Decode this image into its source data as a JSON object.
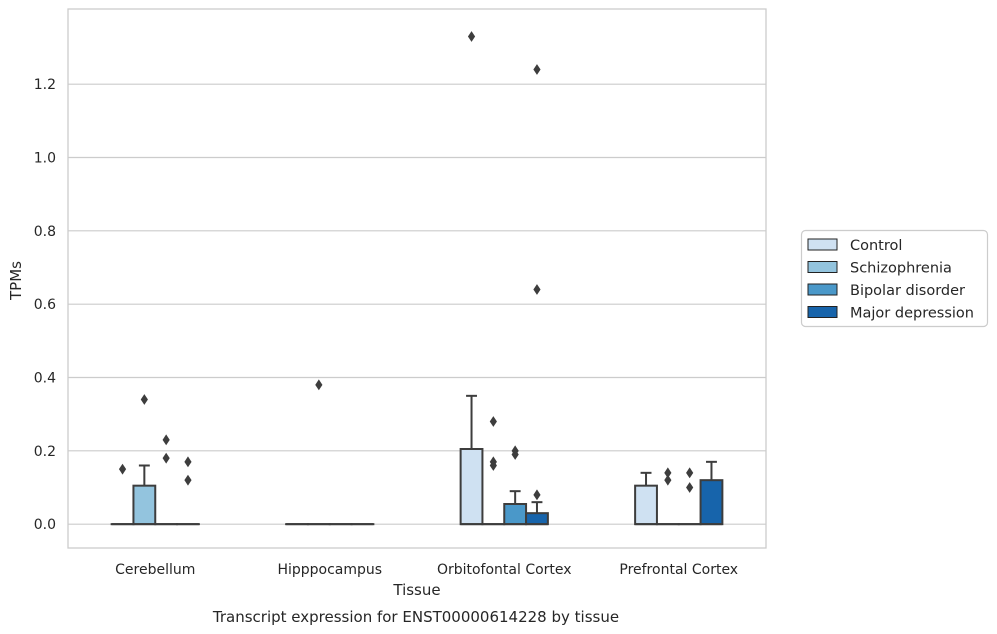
{
  "chart_data": {
    "type": "box",
    "caption": "Transcript expression for ENST00000614228 by tissue",
    "xlabel": "Tissue",
    "ylabel": "TPMs",
    "ylim": [
      -0.065,
      1.405
    ],
    "yticks": [
      0.0,
      0.2,
      0.4,
      0.6,
      0.8,
      1.0,
      1.2
    ],
    "ytick_labels": [
      "0.0",
      "0.2",
      "0.4",
      "0.6",
      "0.8",
      "1.0",
      "1.2"
    ],
    "grid": true,
    "legend_position": "right",
    "categories": [
      "Cerebellum",
      "Hipppocampus",
      "Orbitofontal Cortex",
      "Prefrontal Cortex"
    ],
    "series": [
      {
        "name": "Control",
        "color": "#cfe1f2",
        "boxes": [
          {
            "q1": 0,
            "median": 0,
            "q3": 0,
            "whisker_low": 0,
            "whisker_high": 0,
            "outliers": [
              0.15
            ]
          },
          {
            "q1": 0,
            "median": 0,
            "q3": 0,
            "whisker_low": 0,
            "whisker_high": 0,
            "outliers": []
          },
          {
            "q1": 0,
            "median": 0,
            "q3": 0.205,
            "whisker_low": 0,
            "whisker_high": 0.35,
            "outliers": [
              1.33
            ]
          },
          {
            "q1": 0,
            "median": 0,
            "q3": 0.105,
            "whisker_low": 0,
            "whisker_high": 0.14,
            "outliers": []
          }
        ]
      },
      {
        "name": "Schizophrenia",
        "color": "#93c4de",
        "boxes": [
          {
            "q1": 0,
            "median": 0,
            "q3": 0.105,
            "whisker_low": 0,
            "whisker_high": 0.16,
            "outliers": [
              0.34
            ]
          },
          {
            "q1": 0,
            "median": 0,
            "q3": 0,
            "whisker_low": 0,
            "whisker_high": 0,
            "outliers": [
              0.38
            ]
          },
          {
            "q1": 0,
            "median": 0,
            "q3": 0,
            "whisker_low": 0,
            "whisker_high": 0,
            "outliers": [
              0.28,
              0.17,
              0.16
            ]
          },
          {
            "q1": 0,
            "median": 0,
            "q3": 0,
            "whisker_low": 0,
            "whisker_high": 0,
            "outliers": [
              0.14,
              0.12
            ]
          }
        ]
      },
      {
        "name": "Bipolar disorder",
        "color": "#4a98c9",
        "boxes": [
          {
            "q1": 0,
            "median": 0,
            "q3": 0,
            "whisker_low": 0,
            "whisker_high": 0,
            "outliers": [
              0.23,
              0.18
            ]
          },
          {
            "q1": 0,
            "median": 0,
            "q3": 0,
            "whisker_low": 0,
            "whisker_high": 0,
            "outliers": []
          },
          {
            "q1": 0,
            "median": 0,
            "q3": 0.055,
            "whisker_low": 0,
            "whisker_high": 0.09,
            "outliers": [
              0.2,
              0.19
            ]
          },
          {
            "q1": 0,
            "median": 0,
            "q3": 0,
            "whisker_low": 0,
            "whisker_high": 0,
            "outliers": [
              0.14,
              0.1
            ]
          }
        ]
      },
      {
        "name": "Major depression",
        "color": "#1764ab",
        "boxes": [
          {
            "q1": 0,
            "median": 0,
            "q3": 0,
            "whisker_low": 0,
            "whisker_high": 0,
            "outliers": [
              0.17,
              0.12
            ]
          },
          {
            "q1": 0,
            "median": 0,
            "q3": 0,
            "whisker_low": 0,
            "whisker_high": 0,
            "outliers": []
          },
          {
            "q1": 0,
            "median": 0,
            "q3": 0.03,
            "whisker_low": 0,
            "whisker_high": 0.06,
            "outliers": [
              1.24,
              0.64,
              0.08
            ]
          },
          {
            "q1": 0,
            "median": 0,
            "q3": 0.12,
            "whisker_low": 0,
            "whisker_high": 0.17,
            "outliers": []
          }
        ]
      }
    ]
  }
}
